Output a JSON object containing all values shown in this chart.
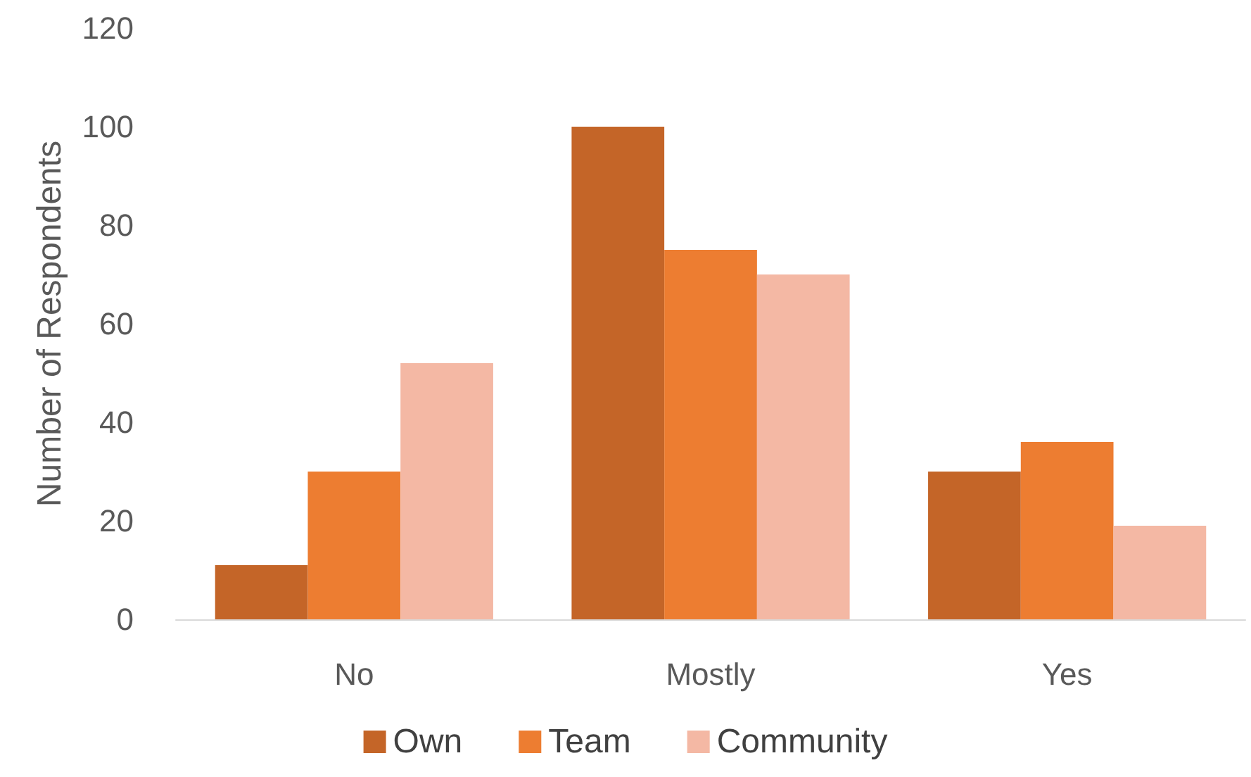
{
  "chart_data": {
    "type": "bar",
    "ylabel": "Number of Respondents",
    "categories": [
      "No",
      "Mostly",
      "Yes"
    ],
    "series": [
      {
        "name": "Own",
        "color": "#c46528",
        "values": [
          11,
          100,
          30
        ]
      },
      {
        "name": "Team",
        "color": "#ed7d31",
        "values": [
          30,
          75,
          36
        ]
      },
      {
        "name": "Community",
        "color": "#f4b8a4",
        "values": [
          52,
          70,
          19
        ]
      }
    ],
    "ylim": [
      0,
      120
    ],
    "yticks": [
      0,
      20,
      40,
      60,
      80,
      100,
      120
    ],
    "grid": false,
    "legend": "bottom"
  }
}
